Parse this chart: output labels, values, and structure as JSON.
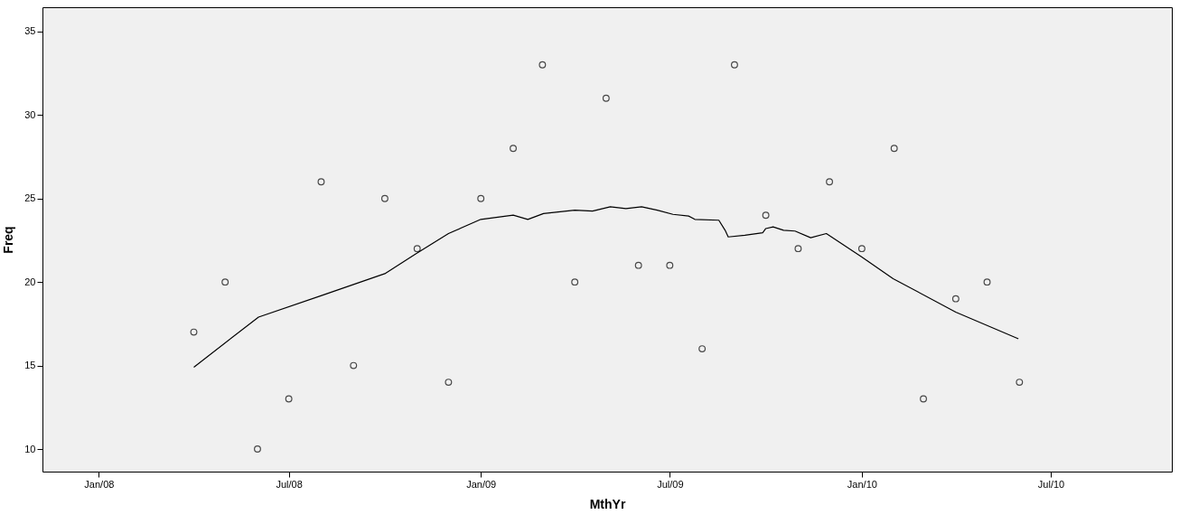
{
  "chart_data": {
    "type": "scatter",
    "xlabel": "MthYr",
    "ylabel": "Freq",
    "x": [
      "2008-04",
      "2008-05",
      "2008-06",
      "2008-07",
      "2008-08",
      "2008-09",
      "2008-10",
      "2008-11",
      "2008-12",
      "2009-01",
      "2009-02",
      "2009-03",
      "2009-04",
      "2009-05",
      "2009-06",
      "2009-07",
      "2009-08",
      "2009-09",
      "2009-10",
      "2009-11",
      "2009-12",
      "2010-01",
      "2010-02",
      "2010-03",
      "2010-04",
      "2010-05",
      "2010-06"
    ],
    "series": [
      {
        "color": "#000000",
        "marker": "circle",
        "values": [
          17,
          20,
          10,
          13,
          26,
          15,
          25,
          22,
          14,
          25,
          28,
          33,
          20,
          31,
          21,
          21,
          16,
          33,
          24,
          22,
          26,
          22,
          28,
          13,
          19,
          20,
          14
        ]
      },
      {
        "type": "line",
        "color": "#000000",
        "line_style": "solid",
        "x": [
          "2008-04-01",
          "2008-06-02",
          "2008-08-02",
          "2008-10-01",
          "2008-10-31",
          "2008-12-01",
          "2009-01-01",
          "2009-02-01",
          "2009-02-15",
          "2009-03-02",
          "2009-04-01",
          "2009-04-18",
          "2009-05-05",
          "2009-05-20",
          "2009-06-04",
          "2009-06-19",
          "2009-07-04",
          "2009-07-19",
          "2009-07-25",
          "2009-08-17",
          "2009-08-23",
          "2009-08-26",
          "2009-09-11",
          "2009-09-28",
          "2009-10-01",
          "2009-10-08",
          "2009-10-18",
          "2009-10-29",
          "2009-11-13",
          "2009-11-28",
          "2010-01-01",
          "2010-01-31",
          "2010-04-01",
          "2010-05-31"
        ],
        "values": [
          14.9,
          17.9,
          19.2,
          20.5,
          21.7,
          22.9,
          23.75,
          24.0,
          23.75,
          24.1,
          24.3,
          24.25,
          24.5,
          24.4,
          24.5,
          24.3,
          24.05,
          23.95,
          23.75,
          23.7,
          23.1,
          22.7,
          22.8,
          22.95,
          23.2,
          23.3,
          23.1,
          23.05,
          22.65,
          22.9,
          21.5,
          20.2,
          18.2,
          16.6
        ]
      }
    ],
    "xlim": [
      "2007-11-08",
      "2010-10-25"
    ],
    "xticks": [
      {
        "value": "2008-01",
        "label": "Jan/08"
      },
      {
        "value": "2008-07",
        "label": "Jul/08"
      },
      {
        "value": "2009-01",
        "label": "Jan/09"
      },
      {
        "value": "2009-07",
        "label": "Jul/09"
      },
      {
        "value": "2010-01",
        "label": "Jan/10"
      },
      {
        "value": "2010-07",
        "label": "Jul/10"
      }
    ],
    "ylim": [
      8.65,
      36.45
    ],
    "yticks": [
      10,
      15,
      20,
      25,
      30,
      35
    ],
    "grid": false
  }
}
